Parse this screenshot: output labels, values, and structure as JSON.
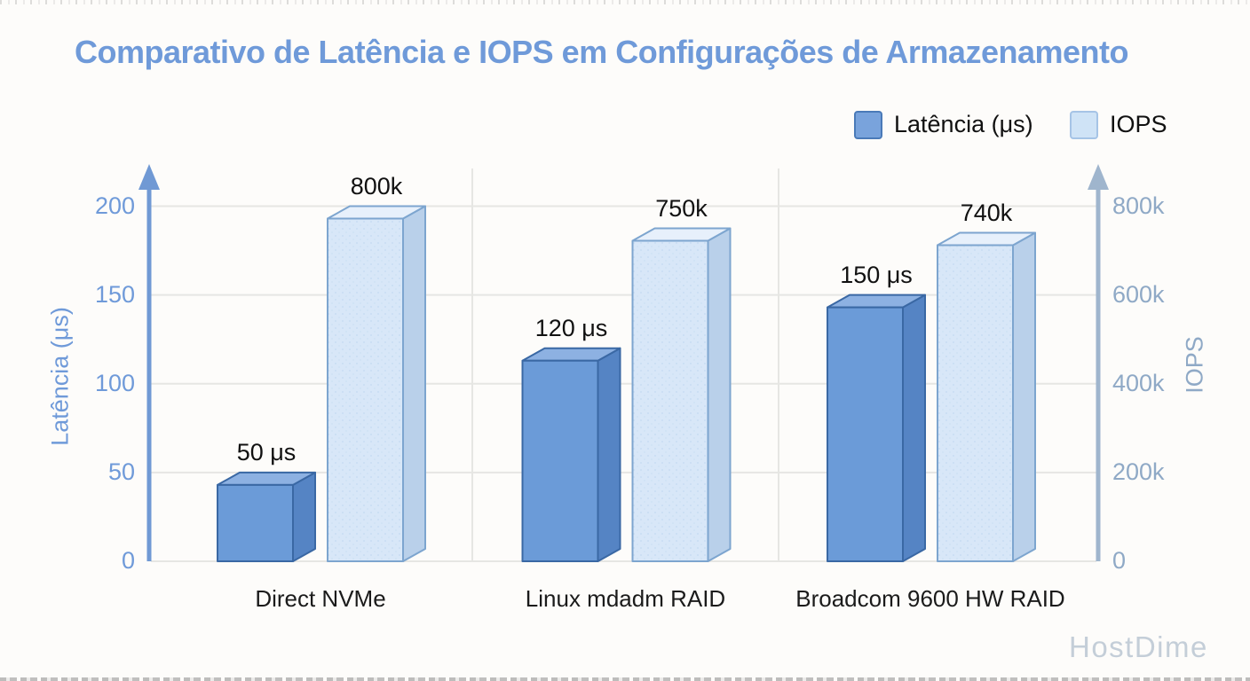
{
  "title": "Comparativo de Latência e IOPS em Configurações de Armazenamento",
  "legend": [
    {
      "label": "Latência (μs)",
      "swatch_fill": "#79a3dc",
      "swatch_border": "#4a7ab8"
    },
    {
      "label": "IOPS",
      "swatch_fill": "#cfe3f6",
      "swatch_border": "#a6c4e6"
    }
  ],
  "watermark": "HostDime",
  "chart_data": {
    "type": "bar",
    "subtype": "3d-grouped-dual-axis",
    "title": "Comparativo de Latência e IOPS em Configurações de Armazenamento",
    "categories": [
      "Direct NVMe",
      "Linux mdadm RAID",
      "Broadcom 9600 HW RAID"
    ],
    "series": [
      {
        "name": "Latência (μs)",
        "axis": "left",
        "values": [
          50,
          120,
          150
        ],
        "labels": [
          "50 μs",
          "120 μs",
          "150 μs"
        ]
      },
      {
        "name": "IOPS",
        "axis": "right",
        "values": [
          800000,
          750000,
          740000
        ],
        "labels": [
          "800k",
          "750k",
          "740k"
        ]
      }
    ],
    "left_axis": {
      "label": "Latência (μs)",
      "range": [
        0,
        200
      ],
      "ticks": [
        "0",
        "50",
        "100",
        "150",
        "200"
      ]
    },
    "right_axis": {
      "label": "IOPS",
      "range": [
        0,
        800000
      ],
      "ticks": [
        "0",
        "200k",
        "400k",
        "600k",
        "800k"
      ]
    },
    "grid": true,
    "legend_position": "top-right"
  },
  "colors": {
    "background": "#fdfcfa",
    "title": "#6f9ad9",
    "left_axis_line": "#7099d4",
    "right_axis_line": "#9fb5cd",
    "left_tick_text": "#6f9ad9",
    "right_tick_text": "#8fa9c6",
    "gridline": "#e6e6e3",
    "latency_front": "#6b9bd8",
    "latency_top": "#8db1e2",
    "latency_side": "#5584c4",
    "latency_stroke": "#3a68a4",
    "iops_front": "#d8e7f8",
    "iops_dot": "#c3daf1",
    "iops_top": "#e7f0fb",
    "iops_side": "#b9d0ea",
    "iops_stroke": "#7da5cf",
    "label_text": "#111111",
    "watermark": "#c4ced8"
  }
}
